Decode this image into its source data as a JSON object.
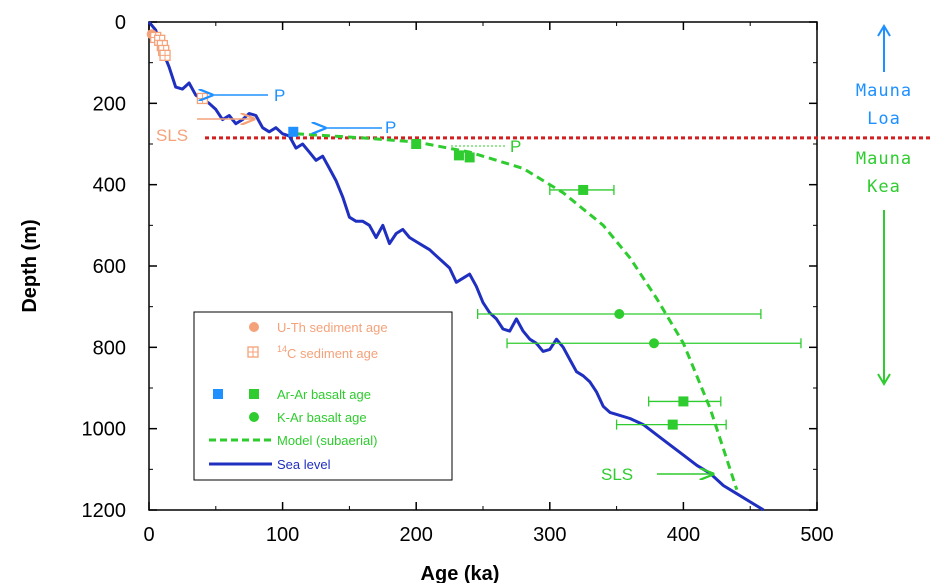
{
  "chart_data": {
    "type": "scatter",
    "xlabel": "Age (ka)",
    "ylabel": "Depth (m)",
    "xlim": [
      0,
      500
    ],
    "ylim": [
      0,
      1200
    ],
    "y_inverted": true,
    "xticks": [
      "0",
      "100",
      "200",
      "300",
      "400",
      "500"
    ],
    "yticks": [
      "0",
      "200",
      "400",
      "600",
      "800",
      "1000",
      "1200"
    ],
    "grid": false,
    "legend_position": "bottom-left",
    "legend": [
      {
        "label": "U-Th sediment age",
        "color": "#f4a27a"
      },
      {
        "label": "14C sediment age",
        "sup": "14",
        "rest": "C sediment age",
        "color": "#f4a27a"
      },
      {
        "label": "Ar-Ar basalt age",
        "color": "#2ecc2e"
      },
      {
        "label": "K-Ar basalt age",
        "color": "#2ecc2e"
      },
      {
        "label": "Model (subaerial)",
        "color": "#2ecc2e"
      },
      {
        "label": "Sea level",
        "color": "#1f2fbf"
      }
    ],
    "series": [
      {
        "name": "Sea level",
        "kind": "line",
        "color": "#1f2fbf",
        "x": [
          0,
          5,
          10,
          15,
          20,
          25,
          30,
          35,
          40,
          45,
          50,
          55,
          60,
          65,
          70,
          75,
          80,
          85,
          90,
          95,
          100,
          105,
          110,
          115,
          120,
          125,
          130,
          135,
          140,
          145,
          150,
          155,
          160,
          165,
          170,
          175,
          180,
          185,
          190,
          195,
          200,
          205,
          210,
          215,
          220,
          225,
          230,
          235,
          240,
          245,
          250,
          255,
          260,
          265,
          270,
          275,
          280,
          285,
          290,
          295,
          300,
          305,
          310,
          315,
          320,
          325,
          330,
          335,
          340,
          345,
          350,
          360,
          370,
          380,
          390,
          400,
          410,
          420,
          430,
          440,
          450,
          460
        ],
        "y": [
          0,
          20,
          70,
          110,
          160,
          165,
          150,
          180,
          190,
          200,
          215,
          240,
          230,
          250,
          240,
          225,
          230,
          260,
          270,
          260,
          275,
          280,
          310,
          300,
          320,
          340,
          330,
          360,
          390,
          430,
          480,
          490,
          490,
          500,
          530,
          500,
          545,
          520,
          510,
          530,
          540,
          550,
          560,
          575,
          590,
          605,
          640,
          630,
          620,
          650,
          690,
          715,
          730,
          755,
          760,
          730,
          760,
          780,
          790,
          810,
          805,
          780,
          800,
          830,
          860,
          870,
          885,
          910,
          945,
          960,
          965,
          975,
          990,
          1015,
          1040,
          1065,
          1090,
          1110,
          1140,
          1160,
          1180,
          1200
        ]
      },
      {
        "name": "Model (subaerial)",
        "kind": "dashed-line",
        "color": "#2ecc2e",
        "x": [
          110,
          160,
          200,
          240,
          280,
          310,
          340,
          360,
          380,
          400,
          420,
          440
        ],
        "y": [
          275,
          285,
          295,
          320,
          360,
          420,
          500,
          580,
          680,
          790,
          950,
          1150
        ]
      },
      {
        "name": "Ar-Ar basalt age",
        "kind": "square",
        "color": "#2ecc2e",
        "points": [
          {
            "x": 200,
            "y": 300
          },
          {
            "x": 232,
            "y": 328
          },
          {
            "x": 240,
            "y": 333
          },
          {
            "x": 325,
            "y": 413,
            "xerr": [
              300,
              348
            ]
          },
          {
            "x": 400,
            "y": 933,
            "xerr": [
              374,
              428
            ]
          },
          {
            "x": 392,
            "y": 990,
            "xerr": [
              350,
              432
            ]
          }
        ]
      },
      {
        "name": "Ar-Ar basalt age (blue)",
        "kind": "square",
        "color": "#1e90ff",
        "points": [
          {
            "x": 108,
            "y": 270
          }
        ]
      },
      {
        "name": "K-Ar basalt age",
        "kind": "circle",
        "color": "#2ecc2e",
        "points": [
          {
            "x": 352,
            "y": 718,
            "xerr": [
              246,
              458
            ]
          },
          {
            "x": 378,
            "y": 790,
            "xerr": [
              268,
              488
            ]
          }
        ]
      },
      {
        "name": "U-Th sediment age",
        "kind": "circle",
        "color": "#f4a27a",
        "points": [
          {
            "x": 2,
            "y": 30
          }
        ]
      },
      {
        "name": "14C sediment age",
        "kind": "gridsquare",
        "color": "#f4a27a",
        "points": [
          {
            "x": 5,
            "y": 38
          },
          {
            "x": 8,
            "y": 45
          },
          {
            "x": 10,
            "y": 58
          },
          {
            "x": 11,
            "y": 70
          },
          {
            "x": 12,
            "y": 82
          },
          {
            "x": 40,
            "y": 188
          }
        ]
      }
    ],
    "reference_line": {
      "y": 285,
      "color": "#d21f1f"
    },
    "annotations": [
      {
        "text": "P",
        "color": "#1e90ff",
        "x": 100,
        "y": 168
      },
      {
        "text": "P",
        "color": "#1e90ff",
        "x": 178,
        "y": 245
      },
      {
        "text": "P",
        "color": "#2ecc2e",
        "x": 271,
        "y": 320
      },
      {
        "text": "SLS",
        "color": "#f4a27a",
        "x": 0,
        "y": 290
      },
      {
        "text": "SLS",
        "color": "#2ecc2e",
        "x": 340,
        "y": 1098
      }
    ],
    "side_labels": {
      "top": [
        "Mauna",
        "Loa"
      ],
      "top_color": "#1e90ff",
      "bottom": [
        "Mauna",
        "Kea"
      ],
      "bottom_color": "#2ecc2e"
    }
  }
}
